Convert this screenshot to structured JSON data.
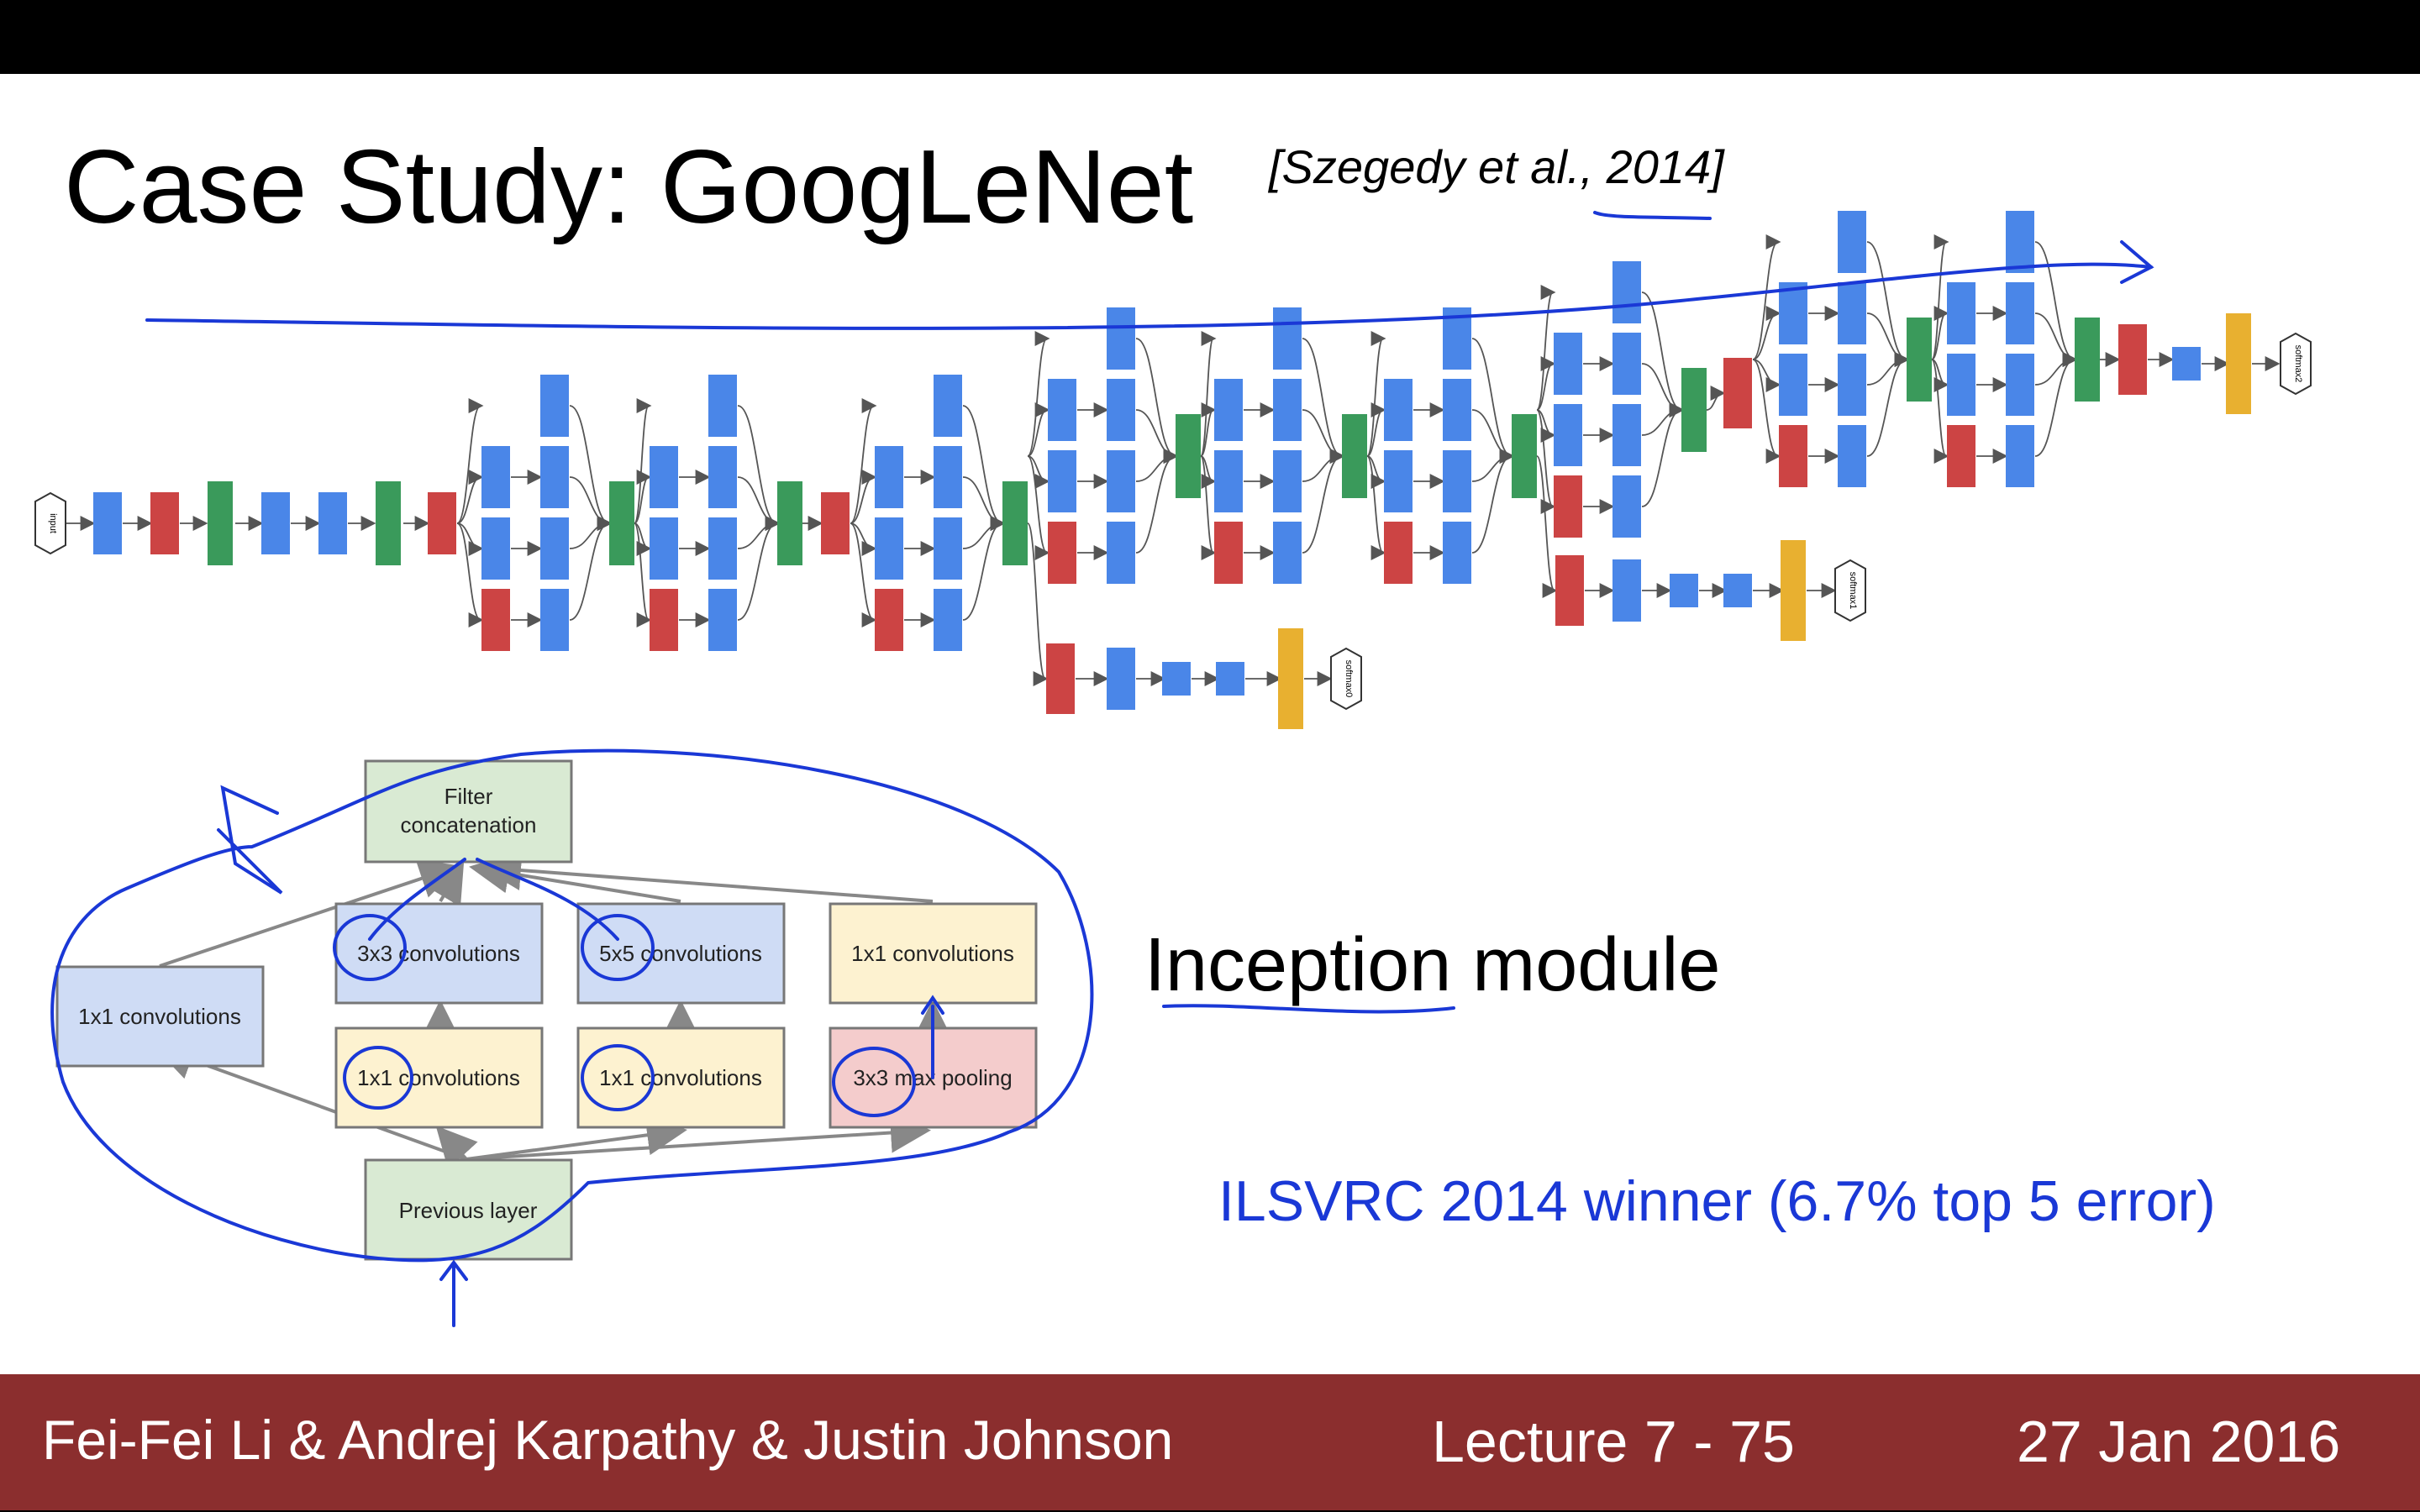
{
  "slide": {
    "title": "Case Study: GoogLeNet",
    "citation": "[Szegedy et al., 2014]",
    "inception_label": "Inception module",
    "winner_text": "ILSVRC 2014 winner (6.7% top 5 error)"
  },
  "network": {
    "input_label": "input",
    "output_labels": [
      "softmax0",
      "softmax1",
      "softmax2"
    ],
    "colors": {
      "conv": "#4a86e8",
      "pool": "#cc4444",
      "concat": "#3a9a5b",
      "softmax": "#e8b030",
      "annotation": "#1a38d6"
    }
  },
  "inception_module": {
    "filter_concat": "Filter concatenation",
    "conv3x3": "3x3 convolutions",
    "conv5x5": "5x5 convolutions",
    "conv1x1_right": "1x1 convolutions",
    "conv1x1_left": "1x1 convolutions",
    "reduce1": "1x1 convolutions",
    "reduce2": "1x1 convolutions",
    "maxpool": "3x3 max pooling",
    "previous": "Previous layer"
  },
  "footer": {
    "authors": "Fei-Fei Li & Andrej Karpathy & Justin Johnson",
    "lecture": "Lecture 7 - 75",
    "date": "27 Jan 2016"
  }
}
